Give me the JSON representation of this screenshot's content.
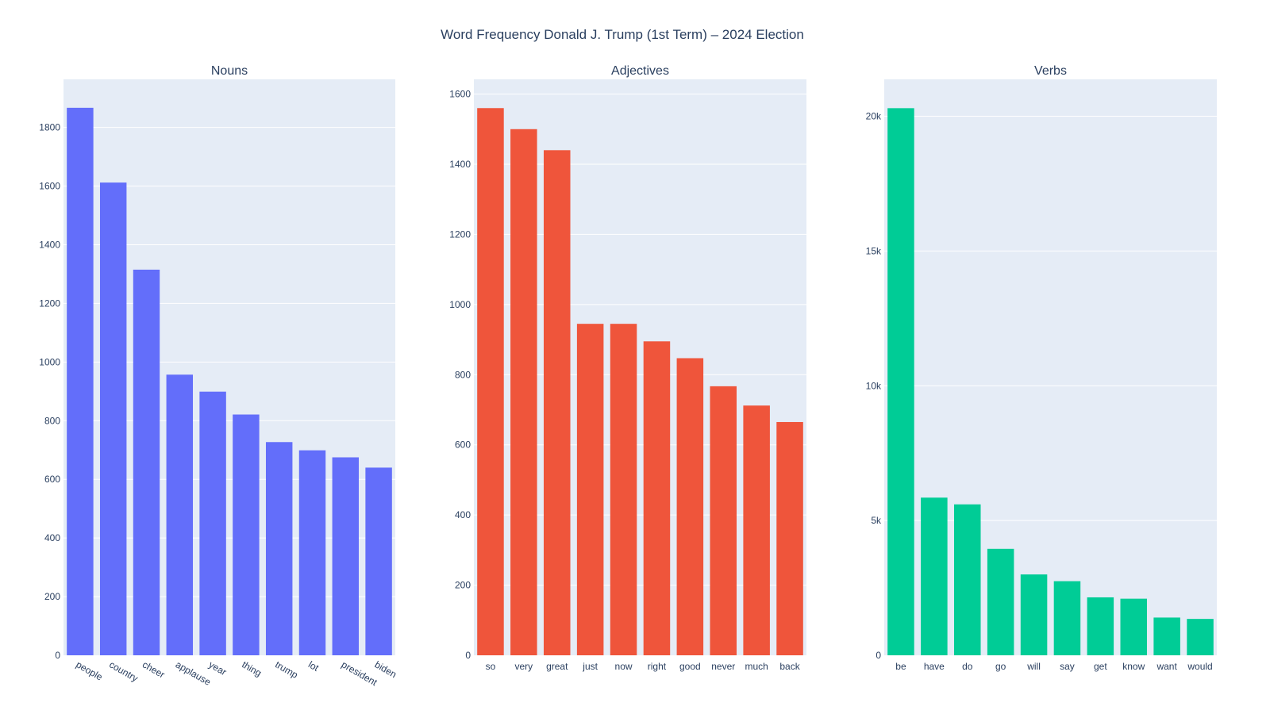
{
  "title": "Word Frequency Donald J. Trump (1st Term) – 2024 Election",
  "chart_data": [
    {
      "type": "bar",
      "title": "Nouns",
      "color": "#636efa",
      "categories": [
        "people",
        "country",
        "cheer",
        "applause",
        "year",
        "thing",
        "trump",
        "lot",
        "president",
        "biden"
      ],
      "values": [
        1867,
        1612,
        1315,
        957,
        899,
        821,
        727,
        699,
        675,
        640
      ],
      "ylim": [
        0,
        1964
      ],
      "yticks": [
        0,
        200,
        400,
        600,
        800,
        1000,
        1200,
        1400,
        1600,
        1800
      ],
      "ytick_labels": [
        "0",
        "200",
        "400",
        "600",
        "800",
        "1000",
        "1200",
        "1400",
        "1600",
        "1800"
      ],
      "xtick_rotation": 30
    },
    {
      "type": "bar",
      "title": "Adjectives",
      "color": "#ef553b",
      "categories": [
        "so",
        "very",
        "great",
        "just",
        "now",
        "right",
        "good",
        "never",
        "much",
        "back"
      ],
      "values": [
        1560,
        1500,
        1440,
        945,
        945,
        895,
        847,
        767,
        712,
        665
      ],
      "ylim": [
        0,
        1642
      ],
      "yticks": [
        0,
        200,
        400,
        600,
        800,
        1000,
        1200,
        1400,
        1600
      ],
      "ytick_labels": [
        "0",
        "200",
        "400",
        "600",
        "800",
        "1000",
        "1200",
        "1400",
        "1600"
      ],
      "xtick_rotation": 0
    },
    {
      "type": "bar",
      "title": "Verbs",
      "color": "#00cc96",
      "categories": [
        "be",
        "have",
        "do",
        "go",
        "will",
        "say",
        "get",
        "know",
        "want",
        "would"
      ],
      "values": [
        20300,
        5850,
        5600,
        3950,
        3000,
        2750,
        2150,
        2100,
        1400,
        1350
      ],
      "ylim": [
        0,
        21370
      ],
      "yticks": [
        0,
        5000,
        10000,
        15000,
        20000
      ],
      "ytick_labels": [
        "0",
        "5k",
        "10k",
        "15k",
        "20k"
      ],
      "xtick_rotation": 0
    }
  ]
}
